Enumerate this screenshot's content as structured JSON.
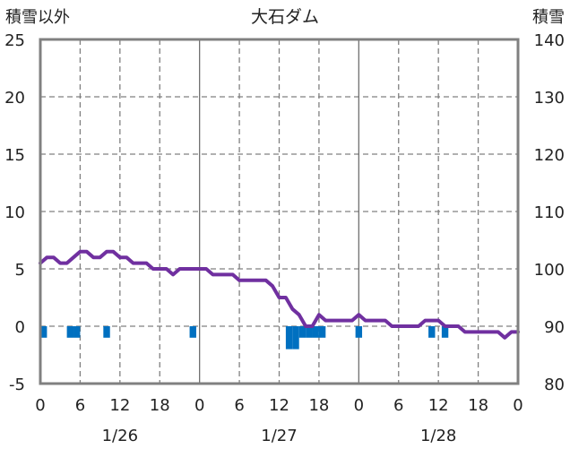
{
  "chart_data": {
    "type": "line",
    "title": "大石ダム",
    "left_axis": {
      "label": "積雪以外",
      "range": [
        -5,
        25
      ],
      "ticks": [
        -5,
        0,
        5,
        10,
        15,
        20,
        25
      ]
    },
    "right_axis": {
      "label": "積雪",
      "range": [
        80,
        140
      ],
      "ticks": [
        80,
        90,
        100,
        110,
        120,
        130,
        140
      ]
    },
    "x_axis": {
      "range_hours": [
        0,
        72
      ],
      "tick_labels": [
        "0",
        "6",
        "12",
        "18",
        "0",
        "6",
        "12",
        "18",
        "0",
        "6",
        "12",
        "18",
        "0"
      ],
      "date_labels": [
        "1/26",
        "1/27",
        "1/28"
      ],
      "date_positions_hours": [
        12,
        36,
        60
      ]
    },
    "grid": true,
    "series": [
      {
        "axis": "right",
        "color": "#7030a0",
        "x": [
          0,
          1,
          2,
          3,
          4,
          5,
          6,
          7,
          8,
          9,
          10,
          11,
          12,
          13,
          14,
          15,
          16,
          17,
          18,
          19,
          20,
          21,
          22,
          23,
          24,
          25,
          26,
          27,
          28,
          29,
          30,
          31,
          32,
          33,
          34,
          35,
          36,
          37,
          38,
          39,
          40,
          41,
          42,
          43,
          44,
          45,
          46,
          47,
          48,
          49,
          50,
          51,
          52,
          53,
          54,
          55,
          56,
          57,
          58,
          59,
          60,
          61,
          62,
          63,
          64,
          65,
          66,
          67,
          68,
          69,
          70,
          71,
          72
        ],
        "values": [
          101,
          102,
          102,
          101,
          101,
          102,
          103,
          103,
          102,
          102,
          103,
          103,
          102,
          102,
          101,
          101,
          101,
          100,
          100,
          100,
          99,
          100,
          100,
          100,
          100,
          100,
          99,
          99,
          99,
          99,
          98,
          98,
          98,
          98,
          98,
          97,
          95,
          95,
          93,
          92,
          90,
          90,
          92,
          91,
          91,
          91,
          91,
          91,
          92,
          91,
          91,
          91,
          91,
          90,
          90,
          90,
          90,
          90,
          91,
          91,
          91,
          90,
          90,
          90,
          89,
          89,
          89,
          89,
          89,
          89,
          88,
          89,
          89
        ]
      },
      {
        "axis": "left",
        "color": "#0070c0",
        "kind": "bar",
        "x": [
          0.5,
          4.5,
          5.5,
          10,
          23,
          37.5,
          38.5,
          39.5,
          40.5,
          41.5,
          42.5,
          48,
          59,
          61
        ],
        "values": [
          -1,
          -1,
          -1,
          -1,
          -1,
          -2,
          -2,
          -1,
          -1,
          -1,
          -1,
          -1,
          -1,
          -1
        ]
      }
    ]
  }
}
